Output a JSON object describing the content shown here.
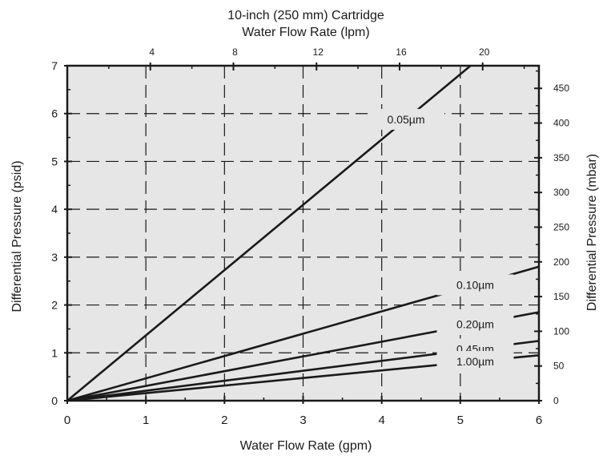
{
  "chart_data": {
    "type": "line",
    "title": "10-inch  (250 mm) Cartridge",
    "x2label": "Water Flow Rate (lpm)",
    "xlabel": "Water Flow Rate (gpm)",
    "ylabel": "Differential Pressure (psid)",
    "y2label": "Differential Pressure (mbar)",
    "xlim": [
      0,
      6
    ],
    "ylim": [
      0,
      7
    ],
    "x2lim": [
      0,
      22.71
    ],
    "y2lim": [
      0,
      482.6
    ],
    "x_ticks": [
      "0",
      "1",
      "2",
      "3",
      "4",
      "5",
      "6"
    ],
    "y_ticks": [
      "0",
      "1",
      "2",
      "3",
      "4",
      "5",
      "6",
      "7"
    ],
    "x2_ticks": [
      "4",
      "8",
      "12",
      "16",
      "20"
    ],
    "y2_ticks": [
      "0",
      "50",
      "100",
      "150",
      "200",
      "250",
      "300",
      "350",
      "400",
      "450"
    ],
    "grid": true,
    "background": "#e6e6e6",
    "line_color": "#1a1a1a",
    "series": [
      {
        "name": "0.05µm",
        "x": [
          0,
          5.13
        ],
        "y": [
          0,
          7.0
        ]
      },
      {
        "name": "0.10µm",
        "x": [
          0,
          6
        ],
        "y": [
          0,
          2.8
        ]
      },
      {
        "name": "0.20µm",
        "x": [
          0,
          6
        ],
        "y": [
          0,
          1.85
        ]
      },
      {
        "name": "0.45µm",
        "x": [
          0,
          6
        ],
        "y": [
          0,
          1.25
        ]
      },
      {
        "name": "1.00µm",
        "x": [
          0,
          6
        ],
        "y": [
          0,
          0.95
        ]
      }
    ]
  }
}
